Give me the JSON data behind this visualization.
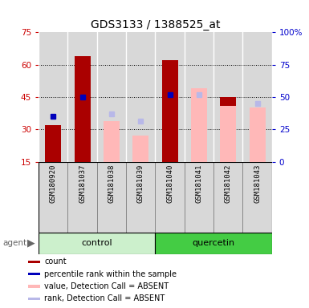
{
  "title": "GDS3133 / 1388525_at",
  "samples": [
    "GSM180920",
    "GSM181037",
    "GSM181038",
    "GSM181039",
    "GSM181040",
    "GSM181041",
    "GSM181042",
    "GSM181043"
  ],
  "group_labels": [
    "control",
    "quercetin"
  ],
  "red_bars": [
    32,
    64,
    null,
    null,
    62,
    null,
    45,
    null
  ],
  "blue_squares": [
    36,
    45,
    null,
    null,
    46,
    null,
    null,
    null
  ],
  "pink_bars": [
    null,
    null,
    34,
    27,
    null,
    49,
    41,
    40
  ],
  "lavender_squares": [
    null,
    null,
    37,
    34,
    null,
    46,
    null,
    42
  ],
  "ylim_left": [
    15,
    75
  ],
  "ylim_right": [
    0,
    100
  ],
  "yticks_left": [
    15,
    30,
    45,
    60,
    75
  ],
  "yticks_right": [
    0,
    25,
    50,
    75,
    100
  ],
  "ytick_right_labels": [
    "0",
    "25",
    "50",
    "75",
    "100%"
  ],
  "left_axis_color": "#cc0000",
  "right_axis_color": "#0000cc",
  "bar_width": 0.55,
  "red_color": "#aa0000",
  "blue_color": "#0000bb",
  "pink_color": "#ffb8b8",
  "lavender_color": "#b8b8e8",
  "bg_plot": "#d8d8d8",
  "bg_control": "#ccf0cc",
  "bg_quercetin": "#44cc44",
  "legend_items": [
    {
      "label": "count",
      "color": "#aa0000"
    },
    {
      "label": "percentile rank within the sample",
      "color": "#0000bb"
    },
    {
      "label": "value, Detection Call = ABSENT",
      "color": "#ffb8b8"
    },
    {
      "label": "rank, Detection Call = ABSENT",
      "color": "#b8b8e8"
    }
  ]
}
